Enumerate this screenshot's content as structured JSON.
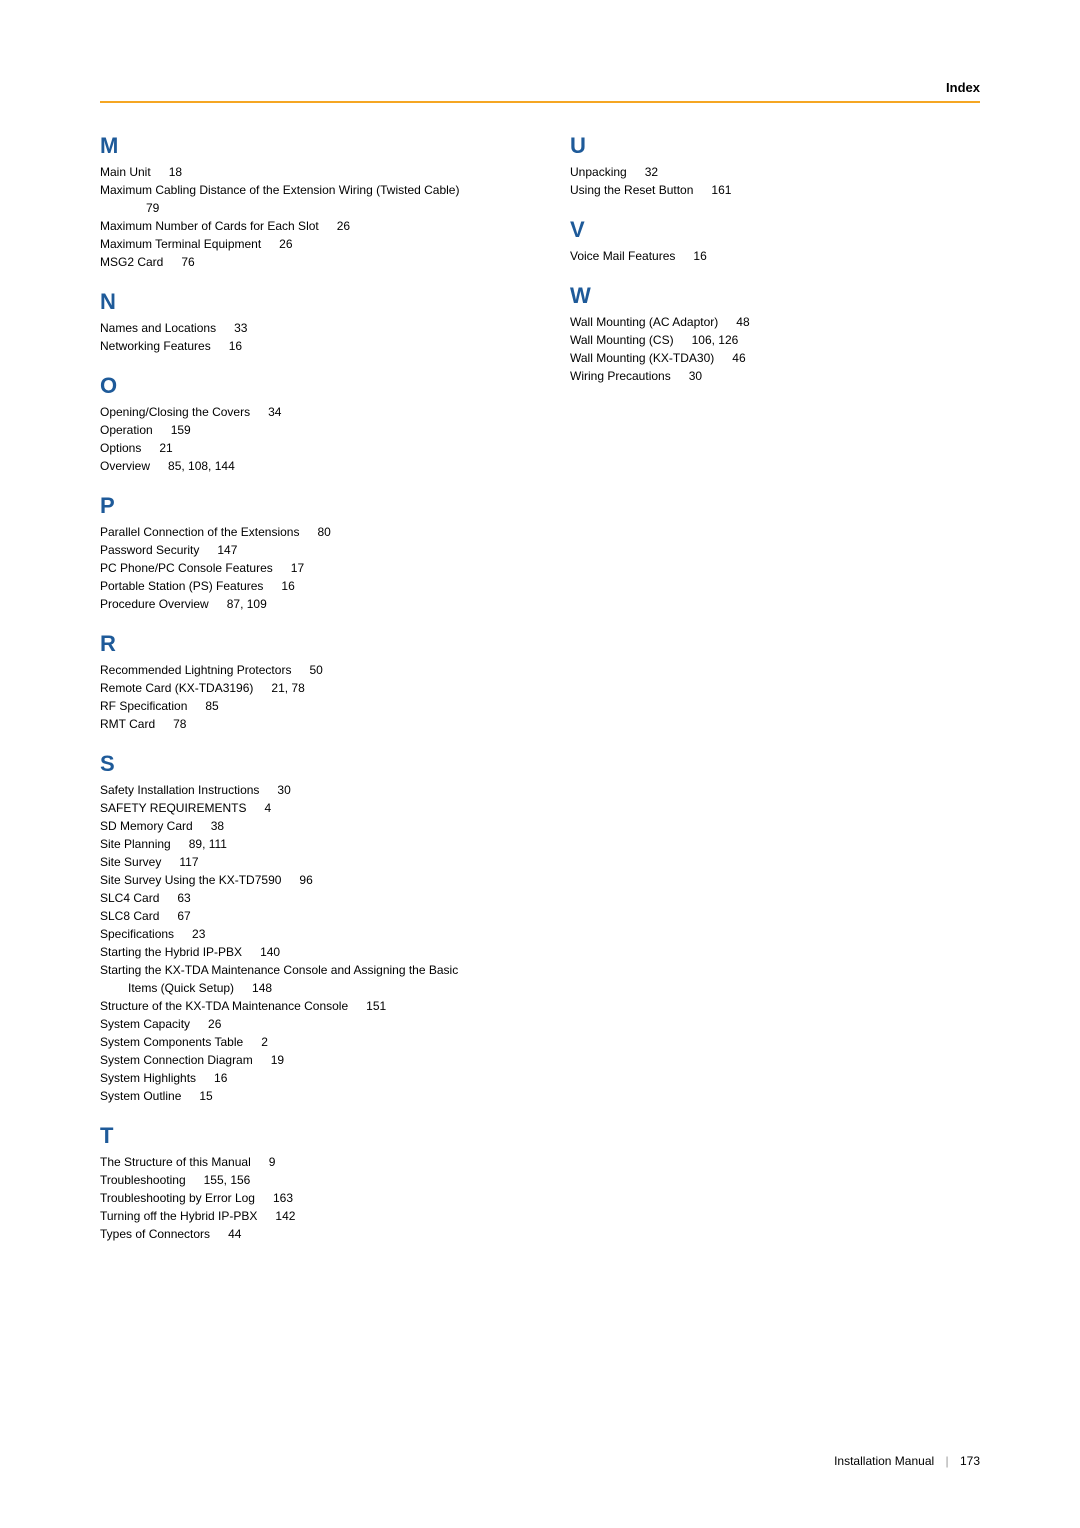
{
  "header": {
    "label": "Index",
    "line_color": "#f5a623"
  },
  "heading_color": "#1e5a99",
  "text_color": "#000000",
  "background_color": "#ffffff",
  "fontsize_heading": 22,
  "fontsize_entry": 12,
  "left_column": [
    {
      "letter": "M",
      "entries": [
        {
          "text": "Main Unit",
          "pages": "18"
        },
        {
          "text": "Maximum Cabling Distance of the Extension Wiring (Twisted Cable)",
          "pages": "",
          "cont_pages": "79"
        },
        {
          "text": "Maximum Number of Cards for Each Slot",
          "pages": "26"
        },
        {
          "text": "Maximum Terminal Equipment",
          "pages": "26"
        },
        {
          "text": "MSG2 Card",
          "pages": "76"
        }
      ]
    },
    {
      "letter": "N",
      "entries": [
        {
          "text": "Names and Locations",
          "pages": "33"
        },
        {
          "text": "Networking Features",
          "pages": "16"
        }
      ]
    },
    {
      "letter": "O",
      "entries": [
        {
          "text": "Opening/Closing the Covers",
          "pages": "34"
        },
        {
          "text": "Operation",
          "pages": "159"
        },
        {
          "text": "Options",
          "pages": "21"
        },
        {
          "text": "Overview",
          "pages": "85, 108, 144"
        }
      ]
    },
    {
      "letter": "P",
      "entries": [
        {
          "text": "Parallel Connection of the Extensions",
          "pages": "80"
        },
        {
          "text": "Password Security",
          "pages": "147"
        },
        {
          "text": "PC Phone/PC Console Features",
          "pages": "17"
        },
        {
          "text": "Portable Station (PS) Features",
          "pages": "16"
        },
        {
          "text": "Procedure Overview",
          "pages": "87, 109"
        }
      ]
    },
    {
      "letter": "R",
      "entries": [
        {
          "text": "Recommended Lightning Protectors",
          "pages": "50"
        },
        {
          "text": "Remote Card (KX-TDA3196)",
          "pages": "21, 78"
        },
        {
          "text": "RF Specification",
          "pages": "85"
        },
        {
          "text": "RMT Card",
          "pages": "78"
        }
      ]
    },
    {
      "letter": "S",
      "entries": [
        {
          "text": "Safety Installation Instructions",
          "pages": "30"
        },
        {
          "text": "SAFETY REQUIREMENTS",
          "pages": "4"
        },
        {
          "text": "SD Memory Card",
          "pages": "38"
        },
        {
          "text": "Site Planning",
          "pages": "89, 111"
        },
        {
          "text": "Site Survey",
          "pages": "117"
        },
        {
          "text": "Site Survey Using the KX-TD7590",
          "pages": "96"
        },
        {
          "text": "SLC4 Card",
          "pages": "63"
        },
        {
          "text": "SLC8 Card",
          "pages": "67"
        },
        {
          "text": "Specifications",
          "pages": "23"
        },
        {
          "text": "Starting the Hybrid IP-PBX",
          "pages": "140"
        },
        {
          "text": "Starting the KX-TDA Maintenance Console and Assigning the Basic",
          "pages": "",
          "cont_text": "Items (Quick Setup)",
          "cont_pages": "148"
        },
        {
          "text": "Structure of the KX-TDA Maintenance Console",
          "pages": "151"
        },
        {
          "text": "System Capacity",
          "pages": "26"
        },
        {
          "text": "System Components Table",
          "pages": "2"
        },
        {
          "text": "System Connection Diagram",
          "pages": "19"
        },
        {
          "text": "System Highlights",
          "pages": "16"
        },
        {
          "text": "System Outline",
          "pages": "15"
        }
      ]
    },
    {
      "letter": "T",
      "entries": [
        {
          "text": "The Structure of this Manual",
          "pages": "9"
        },
        {
          "text": "Troubleshooting",
          "pages": "155, 156"
        },
        {
          "text": "Troubleshooting by Error Log",
          "pages": "163"
        },
        {
          "text": "Turning off the Hybrid IP-PBX",
          "pages": "142"
        },
        {
          "text": "Types of Connectors",
          "pages": "44"
        }
      ]
    }
  ],
  "right_column": [
    {
      "letter": "U",
      "entries": [
        {
          "text": "Unpacking",
          "pages": "32"
        },
        {
          "text": "Using the Reset Button",
          "pages": "161"
        }
      ]
    },
    {
      "letter": "V",
      "entries": [
        {
          "text": "Voice Mail Features",
          "pages": "16"
        }
      ]
    },
    {
      "letter": "W",
      "entries": [
        {
          "text": "Wall Mounting (AC Adaptor)",
          "pages": "48"
        },
        {
          "text": "Wall Mounting (CS)",
          "pages": "106, 126"
        },
        {
          "text": "Wall Mounting (KX-TDA30)",
          "pages": "46"
        },
        {
          "text": "Wiring Precautions",
          "pages": "30"
        }
      ]
    }
  ],
  "footer": {
    "doc_title": "Installation Manual",
    "page_number": "173"
  }
}
